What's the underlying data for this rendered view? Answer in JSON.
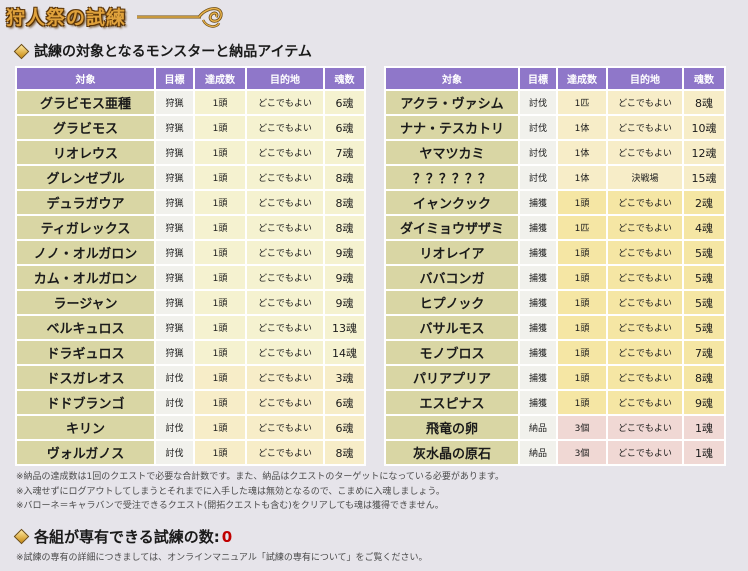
{
  "title": "狩人祭の試練",
  "section_title": "試練の対象となるモンスターと納品アイテム",
  "headers": {
    "target": "対象",
    "goal": "目標",
    "count": "達成数",
    "destination": "目的地",
    "souls": "魂数"
  },
  "left_rows": [
    {
      "target": "グラビモス亜種",
      "goal": "狩猟",
      "count": "1頭",
      "destination": "どこでもよい",
      "souls": "6魂",
      "kind": "hunt"
    },
    {
      "target": "グラビモス",
      "goal": "狩猟",
      "count": "1頭",
      "destination": "どこでもよい",
      "souls": "6魂",
      "kind": "hunt"
    },
    {
      "target": "リオレウス",
      "goal": "狩猟",
      "count": "1頭",
      "destination": "どこでもよい",
      "souls": "7魂",
      "kind": "hunt"
    },
    {
      "target": "グレンゼブル",
      "goal": "狩猟",
      "count": "1頭",
      "destination": "どこでもよい",
      "souls": "8魂",
      "kind": "hunt"
    },
    {
      "target": "デュラガウア",
      "goal": "狩猟",
      "count": "1頭",
      "destination": "どこでもよい",
      "souls": "8魂",
      "kind": "hunt"
    },
    {
      "target": "ティガレックス",
      "goal": "狩猟",
      "count": "1頭",
      "destination": "どこでもよい",
      "souls": "8魂",
      "kind": "hunt"
    },
    {
      "target": "ノノ・オルガロン",
      "goal": "狩猟",
      "count": "1頭",
      "destination": "どこでもよい",
      "souls": "9魂",
      "kind": "hunt"
    },
    {
      "target": "カム・オルガロン",
      "goal": "狩猟",
      "count": "1頭",
      "destination": "どこでもよい",
      "souls": "9魂",
      "kind": "hunt"
    },
    {
      "target": "ラージャン",
      "goal": "狩猟",
      "count": "1頭",
      "destination": "どこでもよい",
      "souls": "9魂",
      "kind": "hunt"
    },
    {
      "target": "ベルキュロス",
      "goal": "狩猟",
      "count": "1頭",
      "destination": "どこでもよい",
      "souls": "13魂",
      "kind": "hunt"
    },
    {
      "target": "ドラギュロス",
      "goal": "狩猟",
      "count": "1頭",
      "destination": "どこでもよい",
      "souls": "14魂",
      "kind": "hunt"
    },
    {
      "target": "ドスガレオス",
      "goal": "討伐",
      "count": "1頭",
      "destination": "どこでもよい",
      "souls": "3魂",
      "kind": "slay"
    },
    {
      "target": "ドドブランゴ",
      "goal": "討伐",
      "count": "1頭",
      "destination": "どこでもよい",
      "souls": "6魂",
      "kind": "slay"
    },
    {
      "target": "キリン",
      "goal": "討伐",
      "count": "1頭",
      "destination": "どこでもよい",
      "souls": "6魂",
      "kind": "slay"
    },
    {
      "target": "ヴォルガノス",
      "goal": "討伐",
      "count": "1頭",
      "destination": "どこでもよい",
      "souls": "8魂",
      "kind": "slay"
    }
  ],
  "right_rows": [
    {
      "target": "アクラ・ヴァシム",
      "goal": "討伐",
      "count": "1匹",
      "destination": "どこでもよい",
      "souls": "8魂",
      "kind": "slay"
    },
    {
      "target": "ナナ・テスカトリ",
      "goal": "討伐",
      "count": "1体",
      "destination": "どこでもよい",
      "souls": "10魂",
      "kind": "slay"
    },
    {
      "target": "ヤマツカミ",
      "goal": "討伐",
      "count": "1体",
      "destination": "どこでもよい",
      "souls": "12魂",
      "kind": "slay"
    },
    {
      "target": "？？？？？？",
      "goal": "討伐",
      "count": "1体",
      "destination": "決戦場",
      "souls": "15魂",
      "kind": "slay"
    },
    {
      "target": "イャンクック",
      "goal": "捕獲",
      "count": "1頭",
      "destination": "どこでもよい",
      "souls": "2魂",
      "kind": "capture"
    },
    {
      "target": "ダイミョウザザミ",
      "goal": "捕獲",
      "count": "1匹",
      "destination": "どこでもよい",
      "souls": "4魂",
      "kind": "capture"
    },
    {
      "target": "リオレイア",
      "goal": "捕獲",
      "count": "1頭",
      "destination": "どこでもよい",
      "souls": "5魂",
      "kind": "capture"
    },
    {
      "target": "ババコンガ",
      "goal": "捕獲",
      "count": "1頭",
      "destination": "どこでもよい",
      "souls": "5魂",
      "kind": "capture"
    },
    {
      "target": "ヒプノック",
      "goal": "捕獲",
      "count": "1頭",
      "destination": "どこでもよい",
      "souls": "5魂",
      "kind": "capture"
    },
    {
      "target": "バサルモス",
      "goal": "捕獲",
      "count": "1頭",
      "destination": "どこでもよい",
      "souls": "5魂",
      "kind": "capture"
    },
    {
      "target": "モノブロス",
      "goal": "捕獲",
      "count": "1頭",
      "destination": "どこでもよい",
      "souls": "7魂",
      "kind": "capture"
    },
    {
      "target": "パリアプリア",
      "goal": "捕獲",
      "count": "1頭",
      "destination": "どこでもよい",
      "souls": "8魂",
      "kind": "capture"
    },
    {
      "target": "エスピナス",
      "goal": "捕獲",
      "count": "1頭",
      "destination": "どこでもよい",
      "souls": "9魂",
      "kind": "capture"
    },
    {
      "target": "飛竜の卵",
      "goal": "納品",
      "count": "3個",
      "destination": "どこでもよい",
      "souls": "1魂",
      "kind": "deliver"
    },
    {
      "target": "灰水晶の原石",
      "goal": "納品",
      "count": "3個",
      "destination": "どこでもよい",
      "souls": "1魂",
      "kind": "deliver"
    }
  ],
  "notes": [
    "※納品の達成数は1回のクエストで必要な合計数です。また、納品はクエストのターゲットになっている必要があります。",
    "※入魂せずにログアウトしてしまうとそれまでに入手した魂は無効となるので、こまめに入魂しましょう。",
    "※バローネ＝キャラバンで受注できるクエスト(開拓クエストも含む)をクリアしても魂は獲得できません。"
  ],
  "exclusive_label": "各組が専有できる試練の数:",
  "exclusive_count": "0",
  "footnote": "※試練の専有の詳細につきましては、オンラインマニュアル「試練の専有について」をご覧ください。",
  "colors": {
    "header": "#8f77c9",
    "name_cell": "#d9d6a4",
    "title": "#e0a23c",
    "count_value": "#c00000"
  }
}
